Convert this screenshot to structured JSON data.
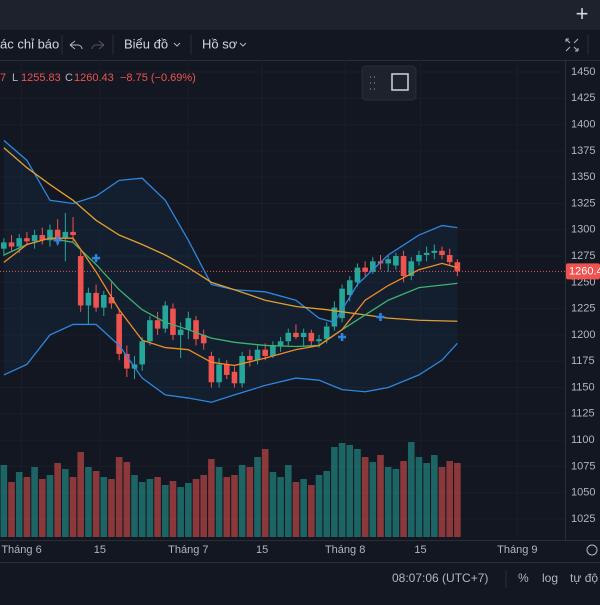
{
  "toolbar": {
    "indicators": "ác chỉ báo",
    "chart_menu": "Biểu đồ",
    "profile_menu": "Hồ sơ"
  },
  "status_bar": {
    "time": "08:07:06 (UTC+7)",
    "percent": "%",
    "log": "log",
    "auto": "tự độ"
  },
  "chart_data": {
    "type": "candlestick",
    "ohlc_legend": [
      "7",
      "L",
      "1255.83",
      "C",
      "1260.43",
      "−8.75 (−0.69%)"
    ],
    "up_color": "#26a69a",
    "down_color": "#ef5350",
    "candles": [
      [
        1282,
        1292,
        1275,
        1288
      ],
      [
        1288,
        1295,
        1280,
        1284
      ],
      [
        1284,
        1296,
        1278,
        1292
      ],
      [
        1292,
        1298,
        1285,
        1289
      ],
      [
        1289,
        1300,
        1282,
        1295
      ],
      [
        1295,
        1302,
        1286,
        1290
      ],
      [
        1290,
        1305,
        1284,
        1300
      ],
      [
        1300,
        1310,
        1285,
        1292
      ],
      [
        1292,
        1316,
        1270,
        1298
      ],
      [
        1298,
        1312,
        1288,
        1295
      ],
      [
        1275,
        1280,
        1222,
        1228
      ],
      [
        1228,
        1245,
        1210,
        1240
      ],
      [
        1240,
        1248,
        1222,
        1226
      ],
      [
        1226,
        1242,
        1218,
        1238
      ],
      [
        1236,
        1250,
        1225,
        1230
      ],
      [
        1220,
        1225,
        1176,
        1182
      ],
      [
        1182,
        1190,
        1160,
        1168
      ],
      [
        1168,
        1180,
        1158,
        1172
      ],
      [
        1172,
        1198,
        1166,
        1194
      ],
      [
        1194,
        1218,
        1190,
        1214
      ],
      [
        1214,
        1222,
        1200,
        1206
      ],
      [
        1206,
        1232,
        1202,
        1228
      ],
      [
        1225,
        1230,
        1195,
        1200
      ],
      [
        1200,
        1212,
        1178,
        1205
      ],
      [
        1205,
        1222,
        1196,
        1216
      ],
      [
        1214,
        1218,
        1190,
        1196
      ],
      [
        1200,
        1205,
        1186,
        1192
      ],
      [
        1180,
        1184,
        1150,
        1155
      ],
      [
        1155,
        1178,
        1150,
        1172
      ],
      [
        1172,
        1176,
        1158,
        1162
      ],
      [
        1165,
        1170,
        1150,
        1154
      ],
      [
        1154,
        1184,
        1150,
        1180
      ],
      [
        1180,
        1186,
        1170,
        1176
      ],
      [
        1176,
        1190,
        1172,
        1186
      ],
      [
        1186,
        1192,
        1176,
        1180
      ],
      [
        1180,
        1194,
        1178,
        1190
      ],
      [
        1190,
        1198,
        1184,
        1194
      ],
      [
        1194,
        1206,
        1190,
        1202
      ],
      [
        1202,
        1210,
        1196,
        1198
      ],
      [
        1198,
        1206,
        1190,
        1202
      ],
      [
        1202,
        1205,
        1190,
        1194
      ],
      [
        1194,
        1200,
        1188,
        1196
      ],
      [
        1196,
        1212,
        1192,
        1208
      ],
      [
        1208,
        1232,
        1204,
        1226
      ],
      [
        1216,
        1248,
        1212,
        1244
      ],
      [
        1238,
        1256,
        1232,
        1252
      ],
      [
        1250,
        1268,
        1246,
        1264
      ],
      [
        1264,
        1270,
        1256,
        1260
      ],
      [
        1260,
        1274,
        1258,
        1270
      ],
      [
        1270,
        1276,
        1262,
        1268
      ],
      [
        1268,
        1276,
        1260,
        1272
      ],
      [
        1266,
        1278,
        1262,
        1275
      ],
      [
        1275,
        1280,
        1250,
        1256
      ],
      [
        1256,
        1274,
        1252,
        1270
      ],
      [
        1270,
        1280,
        1266,
        1276
      ],
      [
        1276,
        1284,
        1270,
        1278
      ],
      [
        1278,
        1286,
        1272,
        1280
      ],
      [
        1280,
        1284,
        1272,
        1276
      ],
      [
        1276,
        1282,
        1266,
        1269.18
      ],
      [
        1269.18,
        1272,
        1255.83,
        1260.43
      ]
    ],
    "volumes": [
      72,
      55,
      65,
      60,
      70,
      58,
      62,
      74,
      68,
      60,
      85,
      70,
      66,
      60,
      58,
      80,
      75,
      62,
      55,
      58,
      60,
      52,
      56,
      50,
      54,
      58,
      62,
      78,
      70,
      60,
      62,
      72,
      70,
      80,
      88,
      65,
      60,
      72,
      55,
      58,
      52,
      62,
      66,
      90,
      94,
      92,
      88,
      80,
      75,
      82,
      70,
      68,
      76,
      95,
      80,
      74,
      82,
      70,
      76,
      74
    ],
    "vlim": [
      0,
      100
    ],
    "lines": [
      {
        "color": "#2e86de",
        "x": [
          0,
          3,
          6,
          9,
          12,
          15,
          18,
          21,
          24,
          27,
          30,
          34,
          38,
          41,
          43,
          46,
          50,
          54,
          57,
          59
        ],
        "values": [
          1385,
          1366,
          1328,
          1325,
          1332,
          1347,
          1349,
          1328,
          1290,
          1248,
          1243,
          1241,
          1233,
          1216,
          1212,
          1248,
          1276,
          1295,
          1304,
          1302
        ]
      },
      {
        "color": "#2e86de",
        "x": [
          0,
          3,
          6,
          9,
          12,
          15,
          18,
          21,
          24,
          27,
          30,
          34,
          38,
          41,
          44,
          47,
          50,
          54,
          57,
          59
        ],
        "values": [
          1162,
          1172,
          1200,
          1210,
          1210,
          1190,
          1159,
          1143,
          1140,
          1136,
          1143,
          1152,
          1159,
          1157,
          1148,
          1146,
          1150,
          1162,
          1176,
          1192
        ]
      },
      {
        "color": "#e0a030",
        "x": [
          0,
          3,
          6,
          9,
          12,
          15,
          18,
          21,
          24,
          27,
          30,
          34,
          38,
          42,
          46,
          50,
          54,
          59
        ],
        "values": [
          1378,
          1359,
          1343,
          1328,
          1309,
          1295,
          1286,
          1276,
          1264,
          1250,
          1243,
          1233,
          1227,
          1224,
          1220,
          1216,
          1214,
          1213
        ]
      },
      {
        "color": "#3cb371",
        "x": [
          0,
          3,
          6,
          9,
          12,
          15,
          18,
          21,
          24,
          27,
          30,
          34,
          38,
          41,
          44,
          47,
          50,
          54,
          59
        ],
        "values": [
          1276,
          1286,
          1292,
          1288,
          1267,
          1243,
          1224,
          1212,
          1205,
          1197,
          1193,
          1190,
          1189,
          1190,
          1205,
          1219,
          1233,
          1245,
          1249
        ]
      },
      {
        "color": "#f08c28",
        "x": [
          0,
          3,
          6,
          9,
          12,
          15,
          18,
          21,
          24,
          27,
          30,
          34,
          38,
          41,
          44,
          47,
          50,
          54,
          57,
          59
        ],
        "values": [
          1269,
          1286,
          1292,
          1292,
          1260,
          1224,
          1195,
          1188,
          1186,
          1174,
          1171,
          1178,
          1186,
          1190,
          1205,
          1233,
          1247,
          1262,
          1268,
          1264
        ]
      }
    ],
    "signals": {
      "x": [
        7,
        12,
        44,
        49
      ],
      "values": [
        1290,
        1273,
        1198,
        1217
      ]
    },
    "last_price": 1260.43,
    "last_price_label": "1260.4",
    "xlim": [
      -0.5,
      73
    ],
    "xticks": [
      {
        "value": 2.3,
        "label": "Tháng 6"
      },
      {
        "value": 12.5,
        "label": "15"
      },
      {
        "value": 24,
        "label": "Tháng 7"
      },
      {
        "value": 33.6,
        "label": "15"
      },
      {
        "value": 44.4,
        "label": "Tháng 8"
      },
      {
        "value": 54.2,
        "label": "15"
      },
      {
        "value": 66.8,
        "label": "Tháng 9"
      }
    ],
    "ylim": [
      1025,
      1450
    ],
    "yticks": [
      1025,
      1050,
      1075,
      1100,
      1125,
      1150,
      1175,
      1200,
      1225,
      1250,
      1275,
      1300,
      1325,
      1350,
      1375,
      1400,
      1425,
      1450
    ]
  }
}
